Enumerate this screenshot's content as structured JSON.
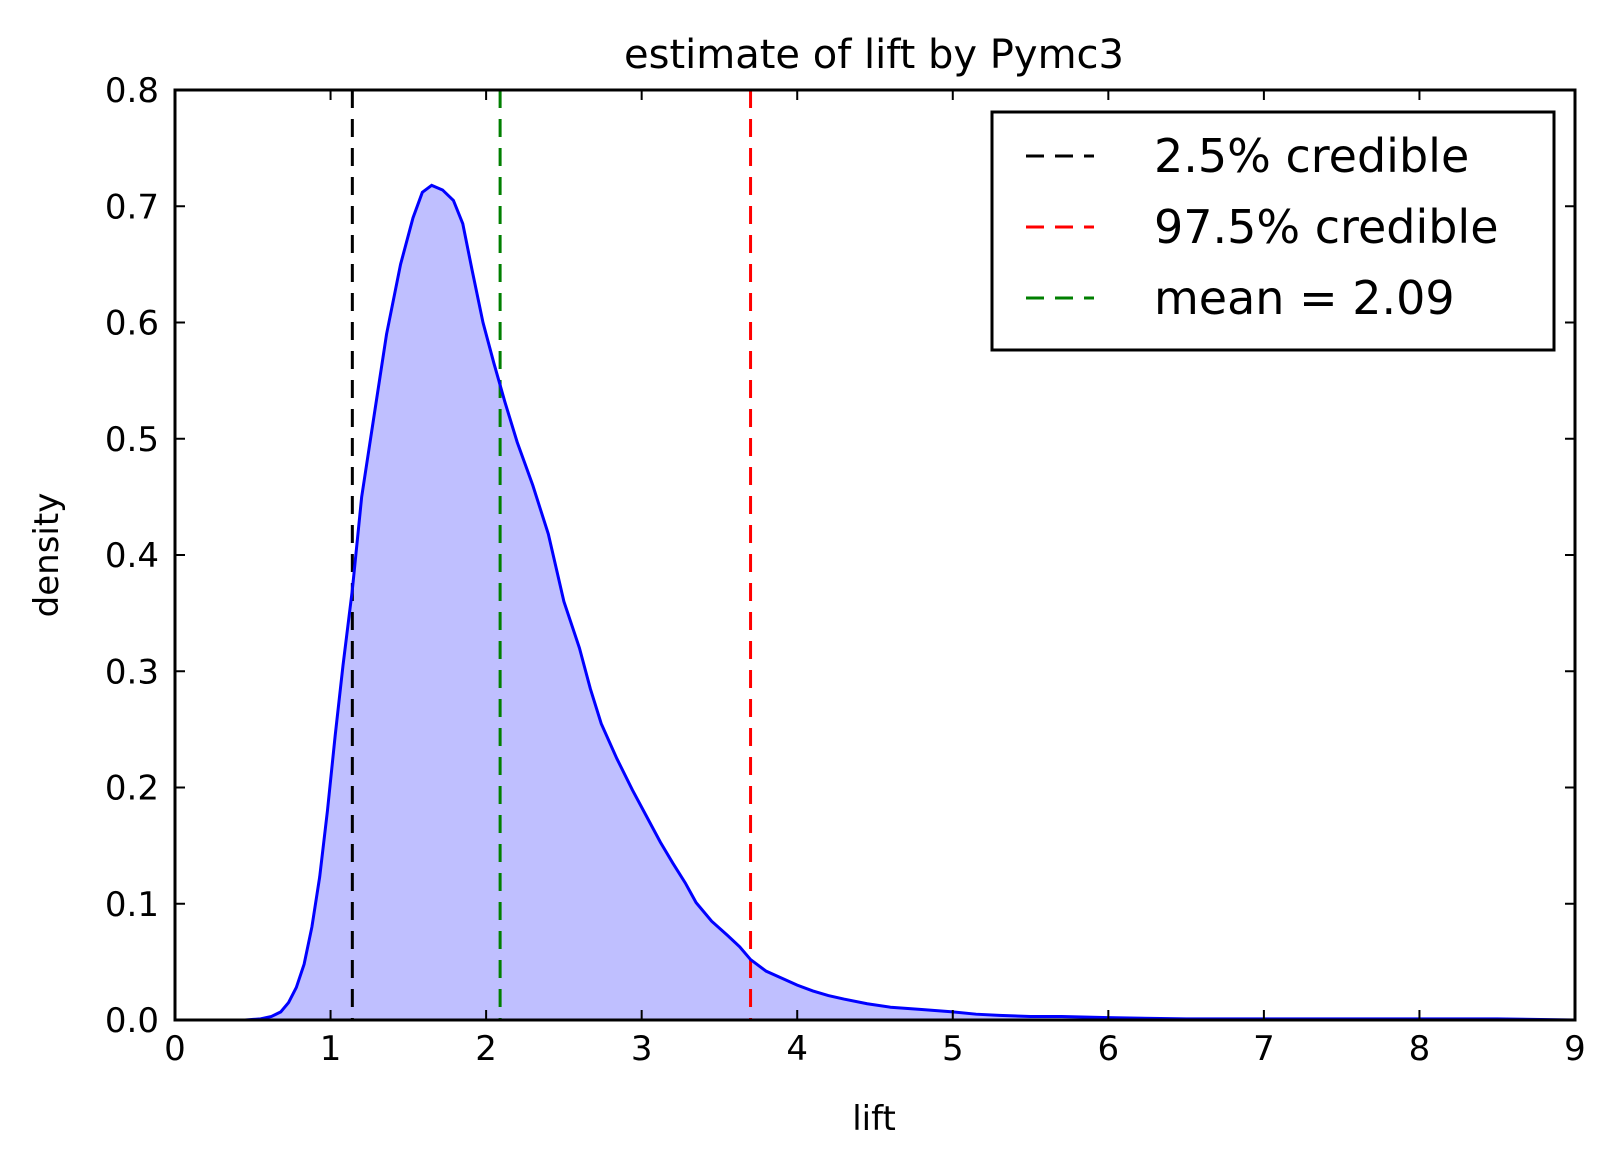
{
  "chart_data": {
    "type": "area",
    "title": "estimate of lift by Pymc3",
    "xlabel": "lift",
    "ylabel": "density",
    "xlim": [
      0,
      9
    ],
    "ylim": [
      0,
      0.8
    ],
    "xticks": [
      0,
      1,
      2,
      3,
      4,
      5,
      6,
      7,
      8,
      9
    ],
    "yticks": [
      0.0,
      0.1,
      0.2,
      0.3,
      0.4,
      0.5,
      0.6,
      0.7,
      0.8
    ],
    "xtick_labels": [
      "0",
      "1",
      "2",
      "3",
      "4",
      "5",
      "6",
      "7",
      "8",
      "9"
    ],
    "ytick_labels": [
      "0.0",
      "0.1",
      "0.2",
      "0.3",
      "0.4",
      "0.5",
      "0.6",
      "0.7",
      "0.8"
    ],
    "grid": false,
    "legend_position": "top-right",
    "series": [
      {
        "kind": "density",
        "color": "#0000ff",
        "fill_color": "#bfbfff",
        "x": [
          0.45,
          0.55,
          0.62,
          0.68,
          0.73,
          0.78,
          0.83,
          0.88,
          0.93,
          0.98,
          1.03,
          1.08,
          1.14,
          1.2,
          1.28,
          1.36,
          1.45,
          1.53,
          1.59,
          1.65,
          1.72,
          1.79,
          1.85,
          1.91,
          1.98,
          2.05,
          2.12,
          2.2,
          2.3,
          2.4,
          2.5,
          2.6,
          2.67,
          2.74,
          2.84,
          2.94,
          3.04,
          3.12,
          3.2,
          3.28,
          3.35,
          3.45,
          3.55,
          3.63,
          3.7,
          3.8,
          3.9,
          4.0,
          4.1,
          4.2,
          4.3,
          4.45,
          4.6,
          4.8,
          5.0,
          5.15,
          5.3,
          5.5,
          5.7,
          6.0,
          6.5,
          7.0,
          7.5,
          8.0,
          8.5,
          9.0
        ],
        "y": [
          0.0,
          0.001,
          0.003,
          0.007,
          0.015,
          0.028,
          0.048,
          0.08,
          0.123,
          0.18,
          0.245,
          0.305,
          0.37,
          0.45,
          0.52,
          0.59,
          0.65,
          0.69,
          0.712,
          0.718,
          0.714,
          0.705,
          0.685,
          0.645,
          0.6,
          0.565,
          0.532,
          0.497,
          0.46,
          0.418,
          0.36,
          0.32,
          0.285,
          0.255,
          0.225,
          0.198,
          0.173,
          0.153,
          0.135,
          0.118,
          0.101,
          0.085,
          0.073,
          0.063,
          0.052,
          0.042,
          0.036,
          0.03,
          0.025,
          0.021,
          0.018,
          0.014,
          0.011,
          0.009,
          0.007,
          0.005,
          0.004,
          0.003,
          0.003,
          0.002,
          0.001,
          0.001,
          0.001,
          0.001,
          0.001,
          0.0
        ]
      }
    ],
    "vlines": [
      {
        "label": "2.5% credible",
        "x": 1.14,
        "color": "#000000"
      },
      {
        "label": "97.5% credible",
        "x": 3.7,
        "color": "#ff0000"
      },
      {
        "label": "mean = 2.09",
        "x": 2.09,
        "color": "#007f00"
      }
    ]
  }
}
